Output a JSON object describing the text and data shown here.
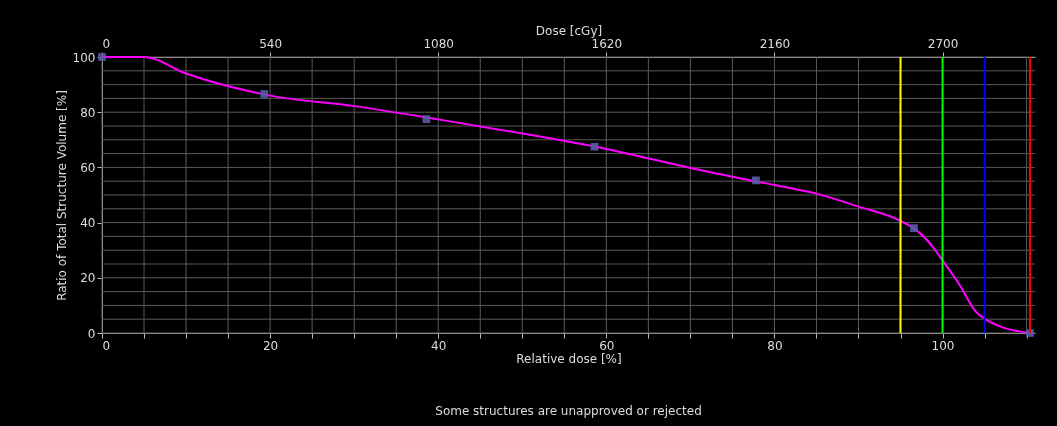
{
  "chart_data": {
    "type": "line",
    "xlabel": "Relative dose [%]",
    "ylabel": "Ratio of Total Structure Volume [%]",
    "x2label": "Dose [cGy]",
    "annotations": [
      "Some structures are unapproved or rejected"
    ],
    "xlim": [
      0,
      111
    ],
    "xticks": [
      0,
      {
        "value": 5,
        "label": null
      },
      {
        "value": 10,
        "label": null
      },
      {
        "value": 15,
        "label": null
      },
      20,
      {
        "value": 25,
        "label": null
      },
      {
        "value": 30,
        "label": null
      },
      {
        "value": 35,
        "label": null
      },
      40,
      {
        "value": 45,
        "label": null
      },
      {
        "value": 50,
        "label": null
      },
      {
        "value": 55,
        "label": null
      },
      60,
      {
        "value": 65,
        "label": null
      },
      {
        "value": 70,
        "label": null
      },
      {
        "value": 75,
        "label": null
      },
      80,
      {
        "value": 85,
        "label": null
      },
      {
        "value": 90,
        "label": null
      },
      {
        "value": 95,
        "label": null
      },
      100,
      {
        "value": 105,
        "label": null
      },
      {
        "value": 110,
        "label": null
      }
    ],
    "ylim": [
      0,
      100
    ],
    "yticks": [
      0,
      {
        "value": 5,
        "label": null
      },
      {
        "value": 10,
        "label": null
      },
      {
        "value": 15,
        "label": null
      },
      20,
      {
        "value": 25,
        "label": null
      },
      {
        "value": 30,
        "label": null
      },
      {
        "value": 35,
        "label": null
      },
      40,
      {
        "value": 45,
        "label": null
      },
      {
        "value": 50,
        "label": null
      },
      {
        "value": 55,
        "label": null
      },
      60,
      {
        "value": 65,
        "label": null
      },
      {
        "value": 70,
        "label": null
      },
      {
        "value": 75,
        "label": null
      },
      80,
      {
        "value": 85,
        "label": null
      },
      {
        "value": 90,
        "label": null
      },
      {
        "value": 95,
        "label": null
      },
      100
    ],
    "x2lim": [
      0,
      2997
    ],
    "x2ticks": [
      0,
      540,
      1080,
      1620,
      2160,
      2700
    ],
    "grid": true,
    "series": [
      {
        "color": "#ff00ff",
        "line_style": "solid",
        "x": [
          0,
          5,
          10,
          20,
          30,
          40,
          50,
          60,
          70,
          80,
          85,
          90,
          95,
          97,
          99,
          100,
          102,
          104,
          105,
          107,
          110.4
        ],
        "values": [
          100,
          100,
          94,
          86,
          82.2,
          77.4,
          72.3,
          66.7,
          59.8,
          53.6,
          50.5,
          45.8,
          40.6,
          37,
          30.6,
          26.3,
          17.6,
          7.6,
          5.2,
          2.2,
          0
        ]
      },
      {
        "type": "scatter",
        "color": "#5a5aa8",
        "marker": "square",
        "x": [
          0,
          19.3,
          38.6,
          58.6,
          77.8,
          96.6,
          110.4
        ],
        "values": [
          100,
          86.6,
          77.5,
          67.5,
          55.3,
          38,
          0
        ]
      }
    ],
    "ref_lines": [
      {
        "axis": "x",
        "value": 95,
        "color": "#ffff00"
      },
      {
        "axis": "x",
        "value": 100,
        "color": "#00ff00"
      },
      {
        "axis": "x",
        "value": 105,
        "color": "#0000ff"
      },
      {
        "axis": "x",
        "value": 110.4,
        "color": "#ff0000"
      }
    ]
  }
}
